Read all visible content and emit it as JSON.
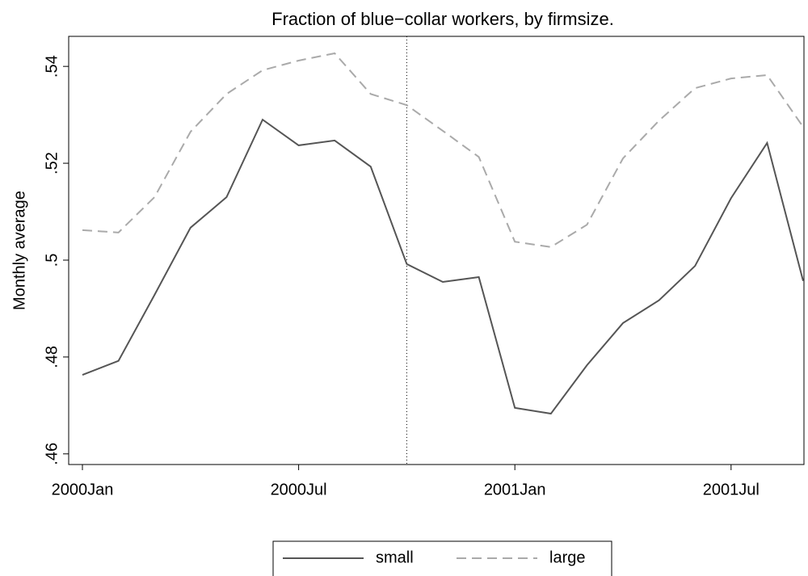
{
  "chart_data": {
    "type": "line",
    "title": "Fraction of blue−collar workers, by firmsize.",
    "y_label": "Monthly average",
    "categories": [
      "2000Jan",
      null,
      null,
      null,
      null,
      null,
      "2000Jul",
      null,
      null,
      null,
      null,
      null,
      "2001Jan",
      null,
      null,
      null,
      null,
      null,
      "2001Jul",
      null,
      null
    ],
    "series": [
      {
        "name": "small",
        "color": "#555555",
        "dash": "solid",
        "values": [
          0.4763,
          0.4792,
          0.4928,
          0.5067,
          0.513,
          0.529,
          0.5237,
          0.5247,
          0.5193,
          0.4992,
          0.4955,
          0.4965,
          0.4695,
          0.4683,
          0.4783,
          0.487,
          0.4917,
          0.4988,
          0.5128,
          0.5242,
          0.4957
        ]
      },
      {
        "name": "large",
        "color": "#aaaaaa",
        "dash": "dashed",
        "values": [
          0.5062,
          0.5057,
          0.513,
          0.5265,
          0.5343,
          0.5392,
          0.5412,
          0.5427,
          0.5343,
          0.532,
          0.5267,
          0.5213,
          0.5038,
          0.5027,
          0.5073,
          0.521,
          0.5288,
          0.5355,
          0.5375,
          0.5382,
          0.5275
        ]
      }
    ],
    "reference_line_index": 9,
    "ylim": [
      0.4578,
      0.5462
    ],
    "yticks": [
      {
        "value": 0.46,
        "label": ".46"
      },
      {
        "value": 0.48,
        "label": ".48"
      },
      {
        "value": 0.5,
        "label": ".5"
      },
      {
        "value": 0.52,
        "label": ".52"
      },
      {
        "value": 0.54,
        "label": ".54"
      }
    ],
    "legend": "bottom"
  }
}
